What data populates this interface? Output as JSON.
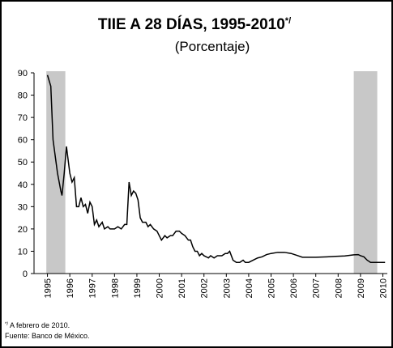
{
  "chart_data": {
    "type": "line",
    "title": "TIIE A 28 DÍAS, 1995-2010",
    "title_superscript": "*/",
    "subtitle": "(Porcentaje)",
    "x": [
      1995.0,
      1995.15,
      1995.25,
      1995.45,
      1995.6,
      1995.65,
      1995.75,
      1995.85,
      1996.0,
      1996.1,
      1996.2,
      1996.3,
      1996.4,
      1996.5,
      1996.6,
      1996.7,
      1996.8,
      1996.9,
      1997.0,
      1997.1,
      1997.2,
      1997.3,
      1997.45,
      1997.55,
      1997.7,
      1997.8,
      1998.0,
      1998.15,
      1998.3,
      1998.45,
      1998.55,
      1998.65,
      1998.75,
      1998.85,
      1998.95,
      1999.05,
      1999.15,
      1999.25,
      1999.4,
      1999.5,
      1999.6,
      1999.75,
      1999.9,
      2000.0,
      2000.1,
      2000.25,
      2000.35,
      2000.5,
      2000.6,
      2000.75,
      2000.9,
      2001.0,
      2001.15,
      2001.3,
      2001.4,
      2001.5,
      2001.6,
      2001.7,
      2001.8,
      2001.9,
      2002.0,
      2002.2,
      2002.3,
      2002.45,
      2002.6,
      2002.8,
      2002.95,
      2003.05,
      2003.15,
      2003.3,
      2003.45,
      2003.6,
      2003.75,
      2003.85,
      2004.0,
      2004.2,
      2004.4,
      2004.6,
      2004.8,
      2005.0,
      2005.3,
      2005.6,
      2005.9,
      2006.2,
      2006.4,
      2006.6,
      2007.0,
      2007.5,
      2007.9,
      2008.3,
      2008.7,
      2008.9,
      2009.0,
      2009.15,
      2009.3,
      2009.45,
      2009.7,
      2010.1
    ],
    "values": [
      89,
      84,
      60,
      45,
      37,
      35,
      45,
      57,
      45,
      41,
      43,
      30,
      30,
      34,
      30,
      31,
      27,
      32,
      30,
      22,
      24,
      21,
      23,
      20,
      21,
      20,
      20,
      21,
      20,
      22,
      22,
      41,
      35,
      37,
      36,
      33,
      25,
      23,
      23,
      21,
      22,
      20,
      19,
      17,
      15,
      17,
      16,
      17,
      17,
      19,
      19,
      18,
      17,
      15,
      15,
      12,
      10,
      10,
      8,
      9,
      8,
      7,
      8,
      7,
      8,
      8,
      9,
      9,
      10,
      6,
      5,
      5,
      6,
      5,
      5,
      6,
      7,
      7.5,
      8.5,
      9,
      9.5,
      9.5,
      9,
      8,
      7.3,
      7.3,
      7.3,
      7.5,
      7.7,
      7.9,
      8.4,
      8.5,
      8,
      7.5,
      6,
      5,
      5,
      5
    ],
    "color": "#000000",
    "shaded_ranges": [
      [
        1994.95,
        1995.8
      ],
      [
        2008.7,
        2009.75
      ]
    ],
    "shade_color": "#c8c8c8",
    "xlim": [
      1994.4,
      2010.2
    ],
    "xticks": [
      1995,
      1996,
      1997,
      1998,
      1999,
      2000,
      2001,
      2002,
      2003,
      2004,
      2005,
      2006,
      2007,
      2008,
      2009,
      2010
    ],
    "ylim": [
      0,
      90
    ],
    "yticks": [
      0,
      10,
      20,
      30,
      40,
      50,
      60,
      70,
      80,
      90
    ],
    "footnotes": [
      {
        "mark": "*/",
        "text": " A febrero de 2010."
      },
      {
        "text": "Fuente: Banco de México."
      }
    ]
  }
}
